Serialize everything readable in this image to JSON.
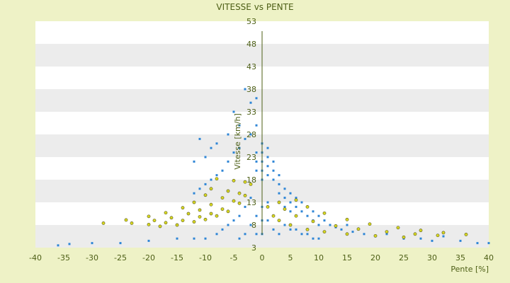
{
  "chart_data": {
    "type": "scatter",
    "title": "VITESSE vs PENTE",
    "xlabel": "Pente [%]",
    "ylabel": "Vitesse [km/h]",
    "xlim": [
      -40,
      40
    ],
    "ylim": [
      3,
      53
    ],
    "x_ticks": [
      -40,
      -35,
      -30,
      -25,
      -20,
      -15,
      -10,
      -5,
      0,
      5,
      10,
      15,
      20,
      25,
      30,
      35,
      40
    ],
    "y_ticks": [
      3,
      8,
      13,
      18,
      23,
      28,
      33,
      38,
      43,
      48,
      53
    ],
    "grid": "horizontal bands",
    "legend": "none",
    "colors": {
      "background": "#eef2c6",
      "plot_band_light": "#ffffff",
      "plot_band_dark": "#ececec",
      "axis_text": "#4d5f16",
      "blue_series": "#2f86d6",
      "yellow_series": "#d8d820",
      "yellow_outline": "#555522"
    },
    "series": [
      {
        "name": "",
        "color": "#2f86d6",
        "points": [
          [
            -1,
            36
          ],
          [
            -2,
            35
          ],
          [
            -3,
            38
          ],
          [
            -4,
            30
          ],
          [
            -5,
            33
          ],
          [
            -6,
            28
          ],
          [
            -8,
            26
          ],
          [
            -9,
            25
          ],
          [
            -10,
            23
          ],
          [
            -11,
            27
          ],
          [
            -12,
            22
          ],
          [
            -1,
            30
          ],
          [
            -2,
            28
          ],
          [
            -3,
            27
          ],
          [
            -4,
            25
          ],
          [
            -5,
            24
          ],
          [
            -6,
            22
          ],
          [
            -7,
            20
          ],
          [
            -8,
            19
          ],
          [
            -9,
            18
          ],
          [
            -10,
            17
          ],
          [
            -11,
            16
          ],
          [
            -12,
            15
          ],
          [
            -1,
            24
          ],
          [
            -1,
            22
          ],
          [
            -1,
            20
          ],
          [
            0,
            26
          ],
          [
            0,
            24
          ],
          [
            0,
            22
          ],
          [
            0,
            20
          ],
          [
            0,
            18
          ],
          [
            1,
            25
          ],
          [
            1,
            23
          ],
          [
            1,
            21
          ],
          [
            1,
            19
          ],
          [
            2,
            22
          ],
          [
            2,
            20
          ],
          [
            2,
            18
          ],
          [
            3,
            19
          ],
          [
            3,
            17
          ],
          [
            3,
            15
          ],
          [
            4,
            16
          ],
          [
            4,
            14
          ],
          [
            4,
            12
          ],
          [
            5,
            15
          ],
          [
            5,
            13
          ],
          [
            5,
            11
          ],
          [
            6,
            14
          ],
          [
            6,
            12
          ],
          [
            6,
            10
          ],
          [
            7,
            13
          ],
          [
            7,
            11
          ],
          [
            8,
            12
          ],
          [
            8,
            10
          ],
          [
            9,
            11
          ],
          [
            9,
            9
          ],
          [
            10,
            10
          ],
          [
            10,
            8
          ],
          [
            11,
            9
          ],
          [
            12,
            8
          ],
          [
            13,
            7.5
          ],
          [
            14,
            7
          ],
          [
            15,
            8
          ],
          [
            16,
            6.5
          ],
          [
            18,
            6
          ],
          [
            20,
            5.5
          ],
          [
            22,
            6
          ],
          [
            25,
            5
          ],
          [
            28,
            5
          ],
          [
            30,
            4.5
          ],
          [
            32,
            5.5
          ],
          [
            35,
            4.5
          ],
          [
            38,
            4
          ],
          [
            40,
            4
          ],
          [
            -2,
            14
          ],
          [
            -3,
            12
          ],
          [
            -4,
            10
          ],
          [
            -5,
            9
          ],
          [
            -6,
            8
          ],
          [
            -7,
            7
          ],
          [
            -8,
            6
          ],
          [
            -10,
            5
          ],
          [
            -12,
            5
          ],
          [
            -15,
            5
          ],
          [
            -20,
            4.5
          ],
          [
            -25,
            4
          ],
          [
            -30,
            4
          ],
          [
            -34,
            3.8
          ],
          [
            -36,
            3.5
          ],
          [
            -2,
            8
          ],
          [
            -3,
            6
          ],
          [
            -4,
            5
          ],
          [
            -1,
            10
          ],
          [
            -1,
            6
          ],
          [
            0,
            12
          ],
          [
            0,
            9
          ],
          [
            0,
            6
          ],
          [
            1,
            13
          ],
          [
            1,
            9
          ],
          [
            2,
            10
          ],
          [
            2,
            7
          ],
          [
            3,
            9
          ],
          [
            3,
            6
          ],
          [
            4,
            8
          ],
          [
            5,
            7
          ],
          [
            6,
            7
          ],
          [
            7,
            6
          ],
          [
            8,
            6
          ],
          [
            9,
            5
          ],
          [
            10,
            5
          ]
        ]
      },
      {
        "name": "",
        "color": "#d8d820",
        "points": [
          [
            -2,
            17
          ],
          [
            -3,
            14.5
          ],
          [
            -4,
            12.8
          ],
          [
            -6,
            11
          ],
          [
            -8,
            10
          ],
          [
            -10,
            9.2
          ],
          [
            -12,
            8.7
          ],
          [
            -15,
            8
          ],
          [
            -18,
            7.7
          ],
          [
            -3,
            17.5
          ],
          [
            -4,
            15
          ],
          [
            -5,
            13.3
          ],
          [
            -7,
            11.5
          ],
          [
            -9,
            10.5
          ],
          [
            -11,
            9.8
          ],
          [
            -14,
            9
          ],
          [
            -17,
            8.5
          ],
          [
            -20,
            8.1
          ],
          [
            -5,
            17.8
          ],
          [
            -6,
            15.5
          ],
          [
            -7,
            14
          ],
          [
            -9,
            12.5
          ],
          [
            -11,
            11.3
          ],
          [
            -13,
            10.5
          ],
          [
            -16,
            9.6
          ],
          [
            -19,
            9
          ],
          [
            -23,
            8.4
          ],
          [
            -8,
            18.2
          ],
          [
            -9,
            16
          ],
          [
            -10,
            14.6
          ],
          [
            -12,
            13
          ],
          [
            -14,
            11.8
          ],
          [
            -17,
            10.7
          ],
          [
            -20,
            9.9
          ],
          [
            -24,
            9.1
          ],
          [
            -28,
            8.4
          ],
          [
            1,
            12
          ],
          [
            2,
            10
          ],
          [
            3,
            9
          ],
          [
            5,
            8
          ],
          [
            8,
            7
          ],
          [
            11,
            6.5
          ],
          [
            15,
            6
          ],
          [
            20,
            5.6
          ],
          [
            25,
            5.3
          ],
          [
            3,
            13
          ],
          [
            4,
            11.5
          ],
          [
            6,
            10
          ],
          [
            9,
            8.8
          ],
          [
            13,
            7.8
          ],
          [
            17,
            7.1
          ],
          [
            22,
            6.5
          ],
          [
            27,
            6
          ],
          [
            31,
            5.7
          ],
          [
            6,
            13.5
          ],
          [
            8,
            12
          ],
          [
            11,
            10.6
          ],
          [
            15,
            9.2
          ],
          [
            19,
            8.2
          ],
          [
            24,
            7.4
          ],
          [
            28,
            6.8
          ],
          [
            32,
            6.3
          ],
          [
            36,
            5.9
          ]
        ]
      }
    ]
  }
}
